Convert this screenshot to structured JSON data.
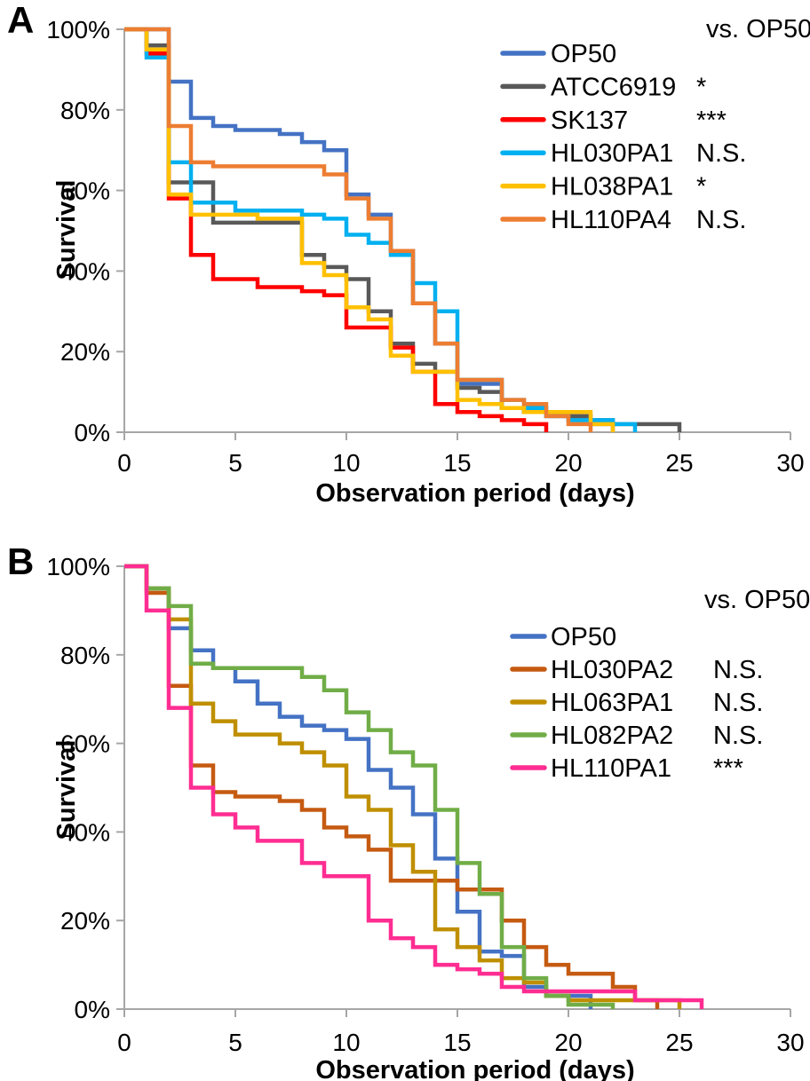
{
  "figure_title": "",
  "chart_data": [
    {
      "panel_label": "A",
      "type": "line",
      "step": true,
      "title": "",
      "xlabel": "Observation period (days)",
      "ylabel": "Survival",
      "legend_header": "vs. OP50",
      "legend_position": "upper right",
      "grid": false,
      "xlim": [
        0,
        30
      ],
      "ylim": [
        0,
        100
      ],
      "x_ticks": [
        0,
        5,
        10,
        15,
        20,
        25,
        30
      ],
      "y_ticks": [
        0,
        20,
        40,
        60,
        80,
        100
      ],
      "y_tick_labels": [
        "0%",
        "20%",
        "40%",
        "60%",
        "80%",
        "100%"
      ],
      "axis_color": "#a6a6a6",
      "series": [
        {
          "name": "OP50",
          "color": "#4472C4",
          "significance": "",
          "points": [
            [
              0,
              100
            ],
            [
              2,
              87
            ],
            [
              3,
              78
            ],
            [
              4,
              76
            ],
            [
              5,
              75
            ],
            [
              7,
              74
            ],
            [
              8,
              72
            ],
            [
              9,
              70
            ],
            [
              10,
              59
            ],
            [
              11,
              54
            ],
            [
              12,
              45
            ],
            [
              13,
              32
            ],
            [
              14,
              22
            ],
            [
              15,
              12
            ],
            [
              17,
              6
            ],
            [
              18,
              5
            ],
            [
              19,
              4
            ],
            [
              20,
              3
            ],
            [
              21,
              2
            ],
            [
              22,
              0
            ]
          ]
        },
        {
          "name": "ATCC6919",
          "color": "#595959",
          "significance": "*",
          "points": [
            [
              0,
              100
            ],
            [
              1,
              96
            ],
            [
              2,
              62
            ],
            [
              4,
              52
            ],
            [
              8,
              44
            ],
            [
              9,
              41
            ],
            [
              10,
              38
            ],
            [
              11,
              30
            ],
            [
              12,
              22
            ],
            [
              13,
              17
            ],
            [
              14,
              15
            ],
            [
              15,
              11
            ],
            [
              16,
              10
            ],
            [
              17,
              6
            ],
            [
              18,
              5
            ],
            [
              20,
              4
            ],
            [
              21,
              3
            ],
            [
              22,
              2
            ],
            [
              25,
              0
            ]
          ]
        },
        {
          "name": "SK137",
          "color": "#FF0000",
          "significance": "***",
          "points": [
            [
              0,
              100
            ],
            [
              1,
              94
            ],
            [
              2,
              58
            ],
            [
              3,
              44
            ],
            [
              4,
              38
            ],
            [
              6,
              36
            ],
            [
              8,
              35
            ],
            [
              9,
              34
            ],
            [
              10,
              26
            ],
            [
              12,
              21
            ],
            [
              13,
              15
            ],
            [
              14,
              7
            ],
            [
              15,
              5
            ],
            [
              16,
              4
            ],
            [
              17,
              3
            ],
            [
              18,
              2
            ],
            [
              19,
              0
            ]
          ]
        },
        {
          "name": "HL030PA1",
          "color": "#00B0F0",
          "significance": "N.S.",
          "points": [
            [
              0,
              100
            ],
            [
              1,
              93
            ],
            [
              2,
              67
            ],
            [
              3,
              57
            ],
            [
              5,
              55
            ],
            [
              8,
              54
            ],
            [
              9,
              53
            ],
            [
              10,
              49
            ],
            [
              11,
              47
            ],
            [
              12,
              44
            ],
            [
              13,
              37
            ],
            [
              14,
              30
            ],
            [
              15,
              13
            ],
            [
              17,
              8
            ],
            [
              18,
              6
            ],
            [
              19,
              4
            ],
            [
              20,
              3
            ],
            [
              22,
              2
            ],
            [
              23,
              0
            ]
          ]
        },
        {
          "name": "HL038PA1",
          "color": "#FFC000",
          "significance": "*",
          "points": [
            [
              0,
              100
            ],
            [
              1,
              95
            ],
            [
              2,
              59
            ],
            [
              3,
              54
            ],
            [
              6,
              53
            ],
            [
              8,
              42
            ],
            [
              9,
              39
            ],
            [
              10,
              31
            ],
            [
              11,
              28
            ],
            [
              12,
              19
            ],
            [
              13,
              15
            ],
            [
              15,
              8
            ],
            [
              16,
              7
            ],
            [
              17,
              6
            ],
            [
              18,
              5
            ],
            [
              21,
              2
            ],
            [
              22,
              0
            ]
          ]
        },
        {
          "name": "HL110PA4",
          "color": "#ED7D31",
          "significance": "N.S.",
          "points": [
            [
              0,
              100
            ],
            [
              2,
              76
            ],
            [
              3,
              67
            ],
            [
              4,
              66
            ],
            [
              9,
              64
            ],
            [
              10,
              58
            ],
            [
              11,
              53
            ],
            [
              12,
              45
            ],
            [
              13,
              32
            ],
            [
              14,
              22
            ],
            [
              15,
              13
            ],
            [
              17,
              8
            ],
            [
              18,
              7
            ],
            [
              19,
              4
            ],
            [
              20,
              2
            ],
            [
              21,
              0
            ]
          ]
        }
      ]
    },
    {
      "panel_label": "B",
      "type": "line",
      "step": true,
      "title": "",
      "xlabel": "Observation period (days)",
      "ylabel": "Survival",
      "legend_header": "vs. OP50",
      "legend_position": "upper right",
      "grid": false,
      "xlim": [
        0,
        30
      ],
      "ylim": [
        0,
        100
      ],
      "x_ticks": [
        0,
        5,
        10,
        15,
        20,
        25,
        30
      ],
      "y_ticks": [
        0,
        20,
        40,
        60,
        80,
        100
      ],
      "y_tick_labels": [
        "0%",
        "20%",
        "40%",
        "60%",
        "80%",
        "100%"
      ],
      "axis_color": "#a6a6a6",
      "series": [
        {
          "name": "OP50",
          "color": "#4472C4",
          "significance": "",
          "points": [
            [
              0,
              100
            ],
            [
              1,
              95
            ],
            [
              2,
              86
            ],
            [
              3,
              81
            ],
            [
              4,
              77
            ],
            [
              5,
              74
            ],
            [
              6,
              69
            ],
            [
              7,
              66
            ],
            [
              8,
              64
            ],
            [
              9,
              63
            ],
            [
              10,
              61
            ],
            [
              11,
              54
            ],
            [
              12,
              50
            ],
            [
              13,
              44
            ],
            [
              14,
              34
            ],
            [
              15,
              22
            ],
            [
              16,
              13
            ],
            [
              17,
              12
            ],
            [
              18,
              5
            ],
            [
              19,
              3
            ],
            [
              21,
              0
            ]
          ]
        },
        {
          "name": "HL030PA2",
          "color": "#C55A11",
          "significance": "N.S.",
          "points": [
            [
              0,
              100
            ],
            [
              1,
              94
            ],
            [
              2,
              73
            ],
            [
              3,
              55
            ],
            [
              4,
              49
            ],
            [
              5,
              48
            ],
            [
              7,
              47
            ],
            [
              8,
              45
            ],
            [
              9,
              41
            ],
            [
              10,
              39
            ],
            [
              11,
              36
            ],
            [
              12,
              29
            ],
            [
              15,
              27
            ],
            [
              17,
              20
            ],
            [
              18,
              14
            ],
            [
              19,
              10
            ],
            [
              20,
              8
            ],
            [
              22,
              5
            ],
            [
              23,
              2
            ],
            [
              24,
              0
            ]
          ]
        },
        {
          "name": "HL063PA1",
          "color": "#BF8F00",
          "significance": "N.S.",
          "points": [
            [
              0,
              100
            ],
            [
              1,
              95
            ],
            [
              2,
              88
            ],
            [
              3,
              69
            ],
            [
              4,
              65
            ],
            [
              5,
              62
            ],
            [
              7,
              60
            ],
            [
              8,
              58
            ],
            [
              9,
              55
            ],
            [
              10,
              48
            ],
            [
              11,
              45
            ],
            [
              12,
              37
            ],
            [
              13,
              31
            ],
            [
              14,
              18
            ],
            [
              15,
              14
            ],
            [
              16,
              11
            ],
            [
              17,
              7
            ],
            [
              18,
              6
            ],
            [
              19,
              3
            ],
            [
              20,
              2
            ],
            [
              25,
              0
            ]
          ]
        },
        {
          "name": "HL082PA2",
          "color": "#70AD47",
          "significance": "N.S.",
          "points": [
            [
              0,
              100
            ],
            [
              1,
              95
            ],
            [
              2,
              91
            ],
            [
              3,
              78
            ],
            [
              4,
              77
            ],
            [
              8,
              75
            ],
            [
              9,
              72
            ],
            [
              10,
              67
            ],
            [
              11,
              63
            ],
            [
              12,
              58
            ],
            [
              13,
              55
            ],
            [
              14,
              45
            ],
            [
              15,
              33
            ],
            [
              16,
              26
            ],
            [
              17,
              14
            ],
            [
              18,
              7
            ],
            [
              19,
              3
            ],
            [
              20,
              1
            ],
            [
              22,
              0
            ]
          ]
        },
        {
          "name": "HL110PA1",
          "color": "#FF2D92",
          "significance": "***",
          "points": [
            [
              0,
              100
            ],
            [
              1,
              90
            ],
            [
              2,
              68
            ],
            [
              3,
              50
            ],
            [
              4,
              44
            ],
            [
              5,
              41
            ],
            [
              6,
              38
            ],
            [
              8,
              33
            ],
            [
              9,
              30
            ],
            [
              11,
              20
            ],
            [
              12,
              16
            ],
            [
              13,
              14
            ],
            [
              14,
              10
            ],
            [
              15,
              9
            ],
            [
              16,
              8
            ],
            [
              17,
              5
            ],
            [
              18,
              4
            ],
            [
              19,
              4
            ],
            [
              23,
              2
            ],
            [
              26,
              0
            ]
          ]
        }
      ]
    }
  ]
}
